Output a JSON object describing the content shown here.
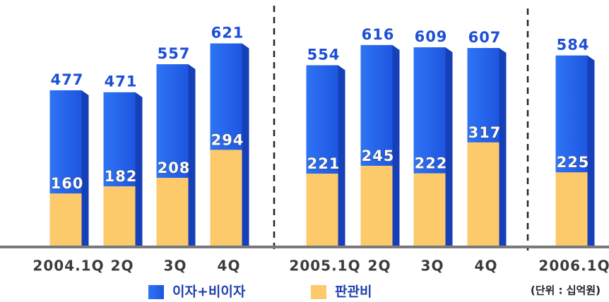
{
  "chart_data": {
    "type": "bar",
    "categories": [
      "2004.1Q",
      "2Q",
      "3Q",
      "4Q",
      "2005.1Q",
      "2Q",
      "3Q",
      "4Q",
      "2006.1Q"
    ],
    "series": [
      {
        "name": "이자+비이자",
        "color": "#2a68ee",
        "values": [
          477,
          471,
          557,
          621,
          554,
          616,
          609,
          607,
          584
        ]
      },
      {
        "name": "판관비",
        "color": "#fdca6b",
        "values": [
          160,
          182,
          208,
          294,
          221,
          245,
          222,
          317,
          225
        ]
      }
    ],
    "ylim": [
      0,
      750
    ],
    "unit_note": "(단위 : 십억원)"
  }
}
